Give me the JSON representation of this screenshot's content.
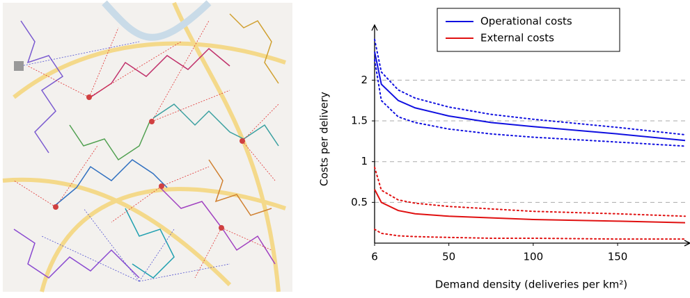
{
  "chart_data": {
    "type": "line",
    "x_label": "Demand density (deliveries per km²)",
    "y_label": "Costs per delivery",
    "x": [
      6,
      10,
      20,
      30,
      50,
      75,
      100,
      150,
      190
    ],
    "series": [
      {
        "name": "Operational costs",
        "color": "#1010e0",
        "style": "solid",
        "values": [
          2.35,
          1.95,
          1.75,
          1.66,
          1.56,
          1.48,
          1.43,
          1.34,
          1.26
        ]
      },
      {
        "color": "#1010e0",
        "style": "dotted",
        "values": [
          2.5,
          2.1,
          1.88,
          1.78,
          1.67,
          1.58,
          1.52,
          1.42,
          1.33
        ]
      },
      {
        "color": "#1010e0",
        "style": "dotted",
        "values": [
          2.25,
          1.75,
          1.55,
          1.48,
          1.4,
          1.34,
          1.3,
          1.24,
          1.19
        ]
      },
      {
        "name": "External costs",
        "color": "#e01010",
        "style": "solid",
        "values": [
          0.66,
          0.5,
          0.4,
          0.36,
          0.33,
          0.31,
          0.29,
          0.27,
          0.25
        ]
      },
      {
        "color": "#e01010",
        "style": "dotted",
        "values": [
          0.93,
          0.65,
          0.53,
          0.49,
          0.45,
          0.42,
          0.39,
          0.36,
          0.33
        ]
      },
      {
        "color": "#e01010",
        "style": "dotted",
        "values": [
          0.17,
          0.12,
          0.09,
          0.08,
          0.07,
          0.06,
          0.06,
          0.05,
          0.05
        ]
      }
    ],
    "xlim": [
      6,
      190
    ],
    "xticks": [
      6,
      50,
      100,
      150
    ],
    "ylim": [
      0,
      2.6
    ],
    "yticks": [
      0.5,
      1,
      1.5,
      2
    ],
    "grid": true,
    "legend": "top"
  }
}
